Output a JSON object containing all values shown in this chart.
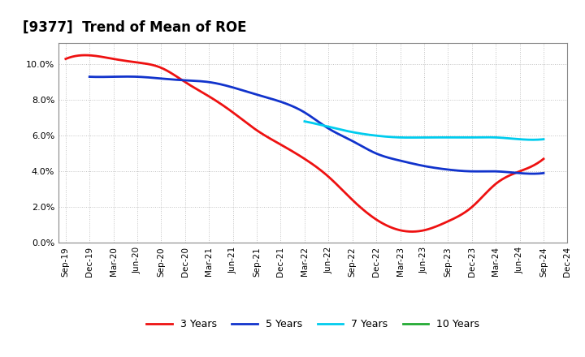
{
  "title": "[9377]  Trend of Mean of ROE",
  "title_fontsize": 12,
  "background_color": "#ffffff",
  "plot_bg_color": "#ffffff",
  "grid_color": "#999999",
  "ylim": [
    0.0,
    0.112
  ],
  "yticks": [
    0.0,
    0.02,
    0.04,
    0.06,
    0.08,
    0.1
  ],
  "xtick_labels": [
    "Sep-19",
    "Dec-19",
    "Mar-20",
    "Jun-20",
    "Sep-20",
    "Dec-20",
    "Mar-21",
    "Jun-21",
    "Sep-21",
    "Dec-21",
    "Mar-22",
    "Jun-22",
    "Sep-22",
    "Dec-22",
    "Mar-23",
    "Jun-23",
    "Sep-23",
    "Dec-23",
    "Mar-24",
    "Jun-24",
    "Sep-24",
    "Dec-24"
  ],
  "series": {
    "3 Years": {
      "color": "#ee1111",
      "linewidth": 2.0,
      "values": [
        0.103,
        0.105,
        0.103,
        0.101,
        0.098,
        0.09,
        0.082,
        0.073,
        0.063,
        0.055,
        0.047,
        0.037,
        0.024,
        0.013,
        0.007,
        0.007,
        0.012,
        0.02,
        0.033,
        0.04,
        0.047,
        null
      ]
    },
    "5 Years": {
      "color": "#1133cc",
      "linewidth": 2.0,
      "values": [
        null,
        0.093,
        0.093,
        0.093,
        0.092,
        0.091,
        0.09,
        0.087,
        0.083,
        0.079,
        0.073,
        0.064,
        0.057,
        0.05,
        0.046,
        0.043,
        0.041,
        0.04,
        0.04,
        0.039,
        0.039,
        null
      ]
    },
    "7 Years": {
      "color": "#00ccee",
      "linewidth": 2.0,
      "values": [
        null,
        null,
        null,
        null,
        null,
        null,
        null,
        null,
        null,
        null,
        0.068,
        0.065,
        0.062,
        0.06,
        0.059,
        0.059,
        0.059,
        0.059,
        0.059,
        0.058,
        0.058,
        null
      ]
    },
    "10 Years": {
      "color": "#22aa33",
      "linewidth": 2.0,
      "values": [
        null,
        null,
        null,
        null,
        null,
        null,
        null,
        null,
        null,
        null,
        null,
        null,
        null,
        null,
        null,
        null,
        null,
        null,
        null,
        null,
        null,
        null
      ]
    }
  },
  "legend_entries": [
    "3 Years",
    "5 Years",
    "7 Years",
    "10 Years"
  ],
  "legend_colors": [
    "#ee1111",
    "#1133cc",
    "#00ccee",
    "#22aa33"
  ]
}
